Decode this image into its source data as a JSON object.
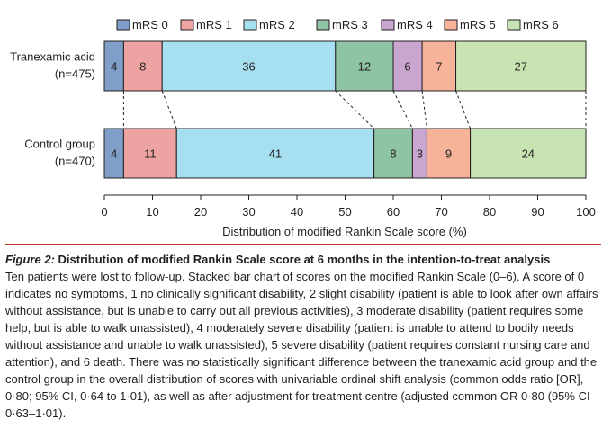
{
  "chart_data": {
    "type": "bar",
    "orientation": "horizontal",
    "stacked": true,
    "categories": [
      "mRS 0",
      "mRS 1",
      "mRS 2",
      "mRS 3",
      "mRS 4",
      "mRS 5",
      "mRS 6"
    ],
    "colors": [
      "#7f9fc9",
      "#eda3a2",
      "#a6dff0",
      "#8ec3a3",
      "#c9a6d0",
      "#f7b29a",
      "#c8e4b3"
    ],
    "groups": [
      {
        "label": "Tranexamic acid",
        "sublabel": "(n=475)",
        "values": [
          4,
          8,
          36,
          12,
          6,
          7,
          27
        ]
      },
      {
        "label": "Control group",
        "sublabel": "(n=470)",
        "values": [
          4,
          11,
          41,
          8,
          3,
          9,
          24
        ]
      }
    ],
    "xlabel": "Distribution of modified Rankin Scale score (%)",
    "xlim": [
      0,
      100
    ],
    "xticks": [
      0,
      10,
      20,
      30,
      40,
      50,
      60,
      70,
      80,
      90,
      100
    ],
    "legend_position": "top",
    "connectors": "dashed"
  },
  "caption": {
    "figure_label": "Figure 2:",
    "title": "Distribution of modified Rankin Scale score at 6 months in the intention-to-treat analysis",
    "body": "Ten patients were lost to follow-up. Stacked bar chart of scores on the modified Rankin Scale (0–6). A score of 0 indicates no symptoms, 1 no clinically significant disability, 2 slight disability (patient is able to look after own affairs without assistance, but is unable to carry out all previous activities), 3 moderate disability (patient requires some help, but is able to walk unassisted), 4 moderately severe disability (patient is unable to attend to bodily needs without assistance and unable to walk unassisted), 5 severe disability (patient requires constant nursing care and attention), and 6 death. There was no statistically significant difference between the tranexamic acid group and the control group in the overall distribution of scores with univariable ordinal shift analysis (common odds ratio [OR], 0·80; 95% CI, 0·64 to 1·01), as well as after adjustment for treatment centre (adjusted common OR 0·80 (95% CI 0·63–1·01)."
  }
}
